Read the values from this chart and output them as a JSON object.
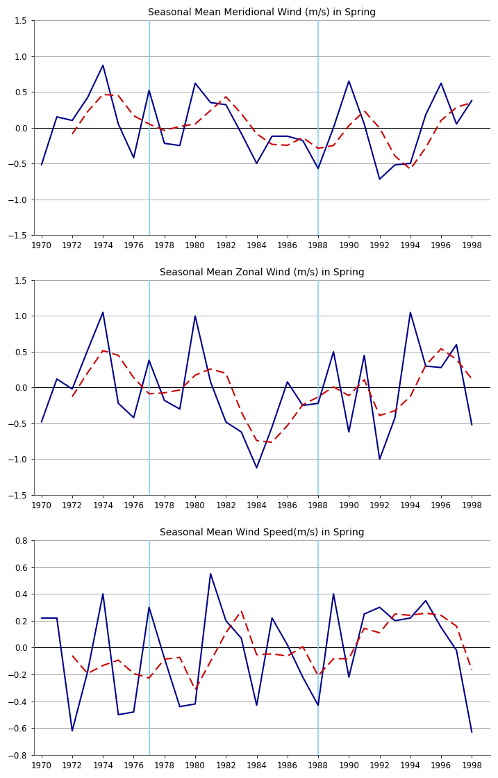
{
  "years": [
    1970,
    1971,
    1972,
    1973,
    1974,
    1975,
    1976,
    1977,
    1978,
    1979,
    1980,
    1981,
    1982,
    1983,
    1984,
    1985,
    1986,
    1987,
    1988,
    1989,
    1990,
    1991,
    1992,
    1993,
    1994,
    1995,
    1996,
    1997,
    1998
  ],
  "meridional": [
    -0.52,
    0.15,
    0.1,
    0.42,
    0.87,
    0.05,
    -0.42,
    0.52,
    -0.22,
    -0.25,
    0.62,
    0.35,
    0.32,
    -0.08,
    -0.5,
    -0.12,
    -0.12,
    -0.18,
    -0.57,
    0.0,
    0.65,
    0.05,
    -0.72,
    -0.52,
    -0.5,
    0.18,
    0.62,
    0.05,
    0.38
  ],
  "zonal": [
    -0.48,
    0.12,
    -0.02,
    0.52,
    1.05,
    -0.22,
    -0.42,
    0.38,
    -0.18,
    -0.3,
    1.0,
    0.08,
    -0.48,
    -0.62,
    -1.12,
    -0.55,
    0.08,
    -0.25,
    -0.22,
    0.5,
    -0.62,
    0.45,
    -1.0,
    -0.42,
    1.05,
    0.3,
    0.28,
    0.6,
    -0.52
  ],
  "wind_speed": [
    0.22,
    0.22,
    -0.62,
    -0.18,
    0.4,
    -0.5,
    -0.48,
    0.3,
    -0.08,
    -0.44,
    -0.42,
    0.55,
    0.2,
    0.07,
    -0.43,
    0.22,
    0.02,
    -0.22,
    -0.43,
    0.4,
    -0.22,
    0.25,
    0.3,
    0.2,
    0.22,
    0.35,
    0.15,
    -0.02,
    -0.63
  ],
  "vline_x": [
    1977,
    1988
  ],
  "title1": "Seasonal Mean Meridional Wind (m/s) in Spring",
  "title2": "Seasonal Mean Zonal Wind (m/s) in Spring",
  "title3": "Seasonal Mean Wind Speed(m/s) in Spring",
  "ylim1": [
    -1.5,
    1.5
  ],
  "ylim2": [
    -1.5,
    1.5
  ],
  "ylim3": [
    -0.8,
    0.8
  ],
  "yticks1": [
    -1.5,
    -1.0,
    -0.5,
    0.0,
    0.5,
    1.0,
    1.5
  ],
  "yticks2": [
    -1.5,
    -1.0,
    -0.5,
    0.0,
    0.5,
    1.0,
    1.5
  ],
  "yticks3": [
    -0.8,
    -0.6,
    -0.4,
    -0.2,
    0.0,
    0.2,
    0.4,
    0.6,
    0.8
  ],
  "line_color": "#00008B",
  "ma_color": "#CC0000",
  "vline_color": "#87CEFA",
  "bg_color": "#ffffff",
  "title_fontsize": 10,
  "tick_fontsize": 8.5,
  "figsize": [
    7.17,
    11.19
  ],
  "dpi": 100
}
